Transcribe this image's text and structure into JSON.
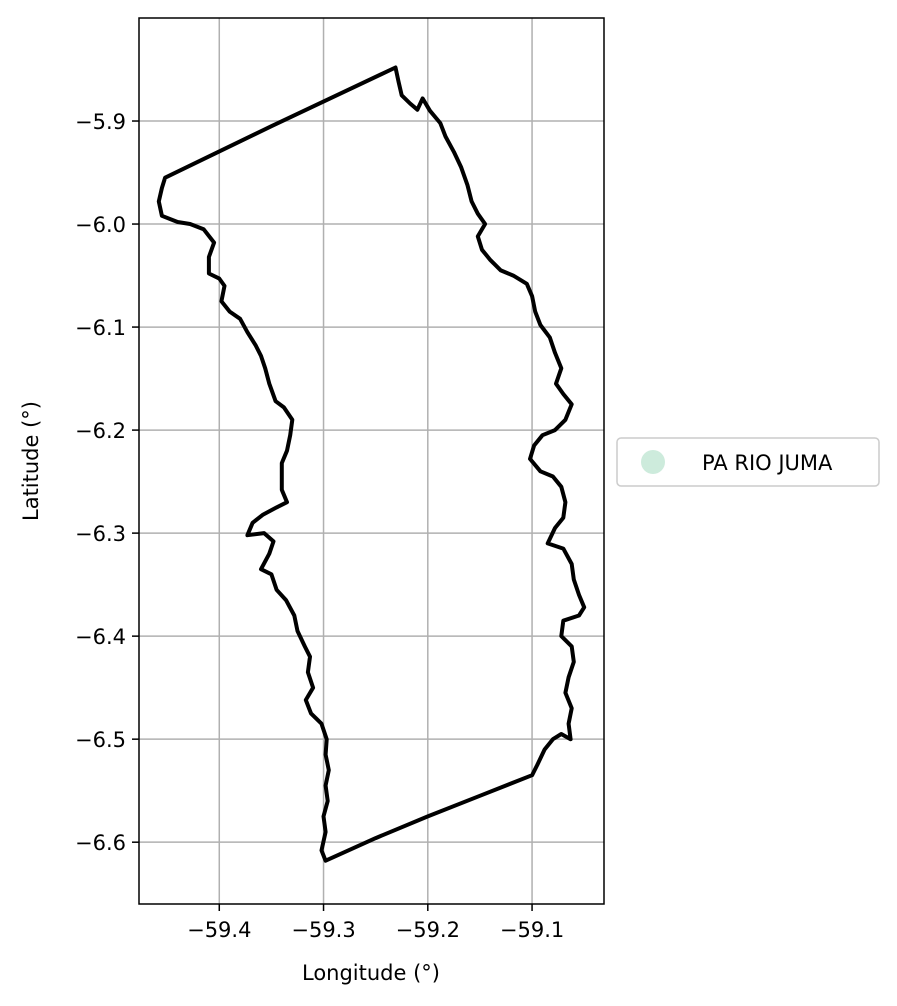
{
  "map": {
    "xlabel": "Longitude (°)",
    "ylabel": "Latitude (°)",
    "xlim": [
      -59.477,
      -59.031
    ],
    "ylim": [
      -6.66,
      -5.8
    ],
    "x_ticks": [
      {
        "value": -59.4,
        "label": "−59.4"
      },
      {
        "value": -59.3,
        "label": "−59.3"
      },
      {
        "value": -59.2,
        "label": "−59.2"
      },
      {
        "value": -59.1,
        "label": "−59.1"
      }
    ],
    "y_ticks": [
      {
        "value": -5.9,
        "label": "−5.9"
      },
      {
        "value": -6.0,
        "label": "−6.0"
      },
      {
        "value": -6.1,
        "label": "−6.1"
      },
      {
        "value": -6.2,
        "label": "−6.2"
      },
      {
        "value": -6.3,
        "label": "−6.3"
      },
      {
        "value": -6.4,
        "label": "−6.4"
      },
      {
        "value": -6.5,
        "label": "−6.5"
      },
      {
        "value": -6.6,
        "label": "−6.6"
      }
    ],
    "grid": true,
    "legend": {
      "placement": "right",
      "entries": [
        {
          "label": "PA RIO JUMA",
          "color": "#cdebdc"
        }
      ]
    },
    "colors": {
      "boundary": "#000000",
      "grid": "#b0b0b0",
      "axes": "#000000"
    },
    "boundary": {
      "name": "PA RIO JUMA",
      "coordinates": [
        [
          -59.231,
          -5.848
        ],
        [
          -59.228,
          -5.862
        ],
        [
          -59.225,
          -5.875
        ],
        [
          -59.217,
          -5.883
        ],
        [
          -59.21,
          -5.889
        ],
        [
          -59.205,
          -5.878
        ],
        [
          -59.198,
          -5.89
        ],
        [
          -59.188,
          -5.902
        ],
        [
          -59.183,
          -5.915
        ],
        [
          -59.175,
          -5.93
        ],
        [
          -59.168,
          -5.945
        ],
        [
          -59.162,
          -5.962
        ],
        [
          -59.158,
          -5.978
        ],
        [
          -59.152,
          -5.99
        ],
        [
          -59.145,
          -6.0
        ],
        [
          -59.152,
          -6.012
        ],
        [
          -59.148,
          -6.025
        ],
        [
          -59.14,
          -6.035
        ],
        [
          -59.13,
          -6.045
        ],
        [
          -59.118,
          -6.05
        ],
        [
          -59.105,
          -6.058
        ],
        [
          -59.1,
          -6.07
        ],
        [
          -59.097,
          -6.085
        ],
        [
          -59.092,
          -6.098
        ],
        [
          -59.083,
          -6.11
        ],
        [
          -59.078,
          -6.125
        ],
        [
          -59.072,
          -6.14
        ],
        [
          -59.077,
          -6.155
        ],
        [
          -59.07,
          -6.165
        ],
        [
          -59.062,
          -6.175
        ],
        [
          -59.068,
          -6.19
        ],
        [
          -59.078,
          -6.2
        ],
        [
          -59.09,
          -6.205
        ],
        [
          -59.098,
          -6.215
        ],
        [
          -59.102,
          -6.228
        ],
        [
          -59.092,
          -6.24
        ],
        [
          -59.08,
          -6.245
        ],
        [
          -59.072,
          -6.255
        ],
        [
          -59.068,
          -6.27
        ],
        [
          -59.07,
          -6.285
        ],
        [
          -59.078,
          -6.295
        ],
        [
          -59.085,
          -6.31
        ],
        [
          -59.07,
          -6.315
        ],
        [
          -59.062,
          -6.33
        ],
        [
          -59.06,
          -6.345
        ],
        [
          -59.055,
          -6.36
        ],
        [
          -59.05,
          -6.372
        ],
        [
          -59.055,
          -6.38
        ],
        [
          -59.07,
          -6.385
        ],
        [
          -59.072,
          -6.4
        ],
        [
          -59.062,
          -6.41
        ],
        [
          -59.06,
          -6.425
        ],
        [
          -59.065,
          -6.44
        ],
        [
          -59.068,
          -6.455
        ],
        [
          -59.062,
          -6.47
        ],
        [
          -59.065,
          -6.485
        ],
        [
          -59.063,
          -6.5
        ],
        [
          -59.072,
          -6.495
        ],
        [
          -59.08,
          -6.5
        ],
        [
          -59.088,
          -6.51
        ],
        [
          -59.095,
          -6.525
        ],
        [
          -59.1,
          -6.535
        ],
        [
          -59.15,
          -6.555
        ],
        [
          -59.2,
          -6.575
        ],
        [
          -59.25,
          -6.596
        ],
        [
          -59.298,
          -6.618
        ],
        [
          -59.302,
          -6.608
        ],
        [
          -59.298,
          -6.59
        ],
        [
          -59.3,
          -6.575
        ],
        [
          -59.296,
          -6.56
        ],
        [
          -59.298,
          -6.545
        ],
        [
          -59.295,
          -6.53
        ],
        [
          -59.298,
          -6.515
        ],
        [
          -59.297,
          -6.5
        ],
        [
          -59.302,
          -6.485
        ],
        [
          -59.312,
          -6.475
        ],
        [
          -59.317,
          -6.462
        ],
        [
          -59.31,
          -6.45
        ],
        [
          -59.315,
          -6.435
        ],
        [
          -59.313,
          -6.42
        ],
        [
          -59.318,
          -6.41
        ],
        [
          -59.325,
          -6.395
        ],
        [
          -59.328,
          -6.38
        ],
        [
          -59.336,
          -6.365
        ],
        [
          -59.345,
          -6.355
        ],
        [
          -59.35,
          -6.34
        ],
        [
          -59.36,
          -6.335
        ],
        [
          -59.352,
          -6.32
        ],
        [
          -59.348,
          -6.308
        ],
        [
          -59.357,
          -6.3
        ],
        [
          -59.373,
          -6.302
        ],
        [
          -59.368,
          -6.29
        ],
        [
          -59.358,
          -6.282
        ],
        [
          -59.345,
          -6.275
        ],
        [
          -59.335,
          -6.27
        ],
        [
          -59.34,
          -6.258
        ],
        [
          -59.34,
          -6.245
        ],
        [
          -59.34,
          -6.232
        ],
        [
          -59.335,
          -6.22
        ],
        [
          -59.332,
          -6.205
        ],
        [
          -59.33,
          -6.19
        ],
        [
          -59.338,
          -6.178
        ],
        [
          -59.346,
          -6.172
        ],
        [
          -59.352,
          -6.155
        ],
        [
          -59.356,
          -6.14
        ],
        [
          -59.36,
          -6.128
        ],
        [
          -59.365,
          -6.118
        ],
        [
          -59.373,
          -6.105
        ],
        [
          -59.38,
          -6.092
        ],
        [
          -59.39,
          -6.085
        ],
        [
          -59.398,
          -6.075
        ],
        [
          -59.395,
          -6.06
        ],
        [
          -59.4,
          -6.053
        ],
        [
          -59.41,
          -6.048
        ],
        [
          -59.41,
          -6.032
        ],
        [
          -59.405,
          -6.018
        ],
        [
          -59.415,
          -6.005
        ],
        [
          -59.428,
          -6.0
        ],
        [
          -59.44,
          -5.998
        ],
        [
          -59.455,
          -5.992
        ],
        [
          -59.458,
          -5.978
        ],
        [
          -59.455,
          -5.965
        ],
        [
          -59.452,
          -5.955
        ],
        [
          -59.35,
          -5.905
        ],
        [
          -59.231,
          -5.848
        ]
      ]
    }
  }
}
